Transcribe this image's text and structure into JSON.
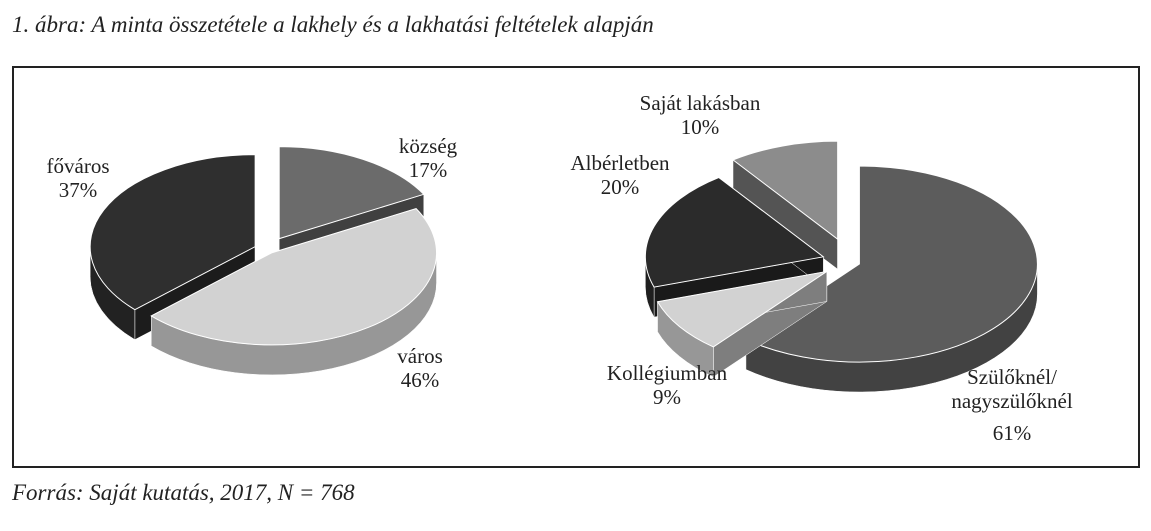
{
  "title": "1. ábra: A minta összetétele a lakhely és a lakhatási feltételek alapján",
  "source": "Forrás: Saját kutatás, 2017, N = 768",
  "chart_data": [
    {
      "type": "pie",
      "categories": [
        "község",
        "város",
        "főváros"
      ],
      "values": [
        17,
        46,
        37
      ],
      "value_labels": [
        "17%",
        "46%",
        "37%"
      ],
      "colors": [
        "#6b6b6b",
        "#d2d2d2",
        "#2f2f2f"
      ]
    },
    {
      "type": "pie",
      "categories": [
        "Szülőknél/ nagyszülőknél",
        "Kollégiumban",
        "Albérletben",
        "Saját lakásban"
      ],
      "values": [
        61,
        9,
        20,
        10
      ],
      "value_labels": [
        "61%",
        "9%",
        "20%",
        "10%"
      ],
      "colors": [
        "#5c5c5c",
        "#d2d2d2",
        "#2b2b2b",
        "#8c8c8c"
      ]
    }
  ]
}
